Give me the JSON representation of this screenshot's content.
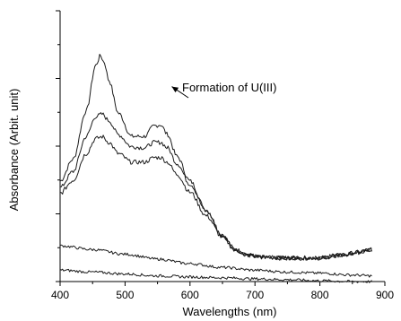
{
  "chart_data": {
    "type": "line",
    "title": "",
    "xlabel": "Wavelengths (nm)",
    "ylabel": "Absorbance (Arbit. unit)",
    "xlim": [
      400,
      900
    ],
    "ylim": [
      0,
      1
    ],
    "x_ticks": [
      400,
      500,
      600,
      700,
      800,
      900
    ],
    "y_ticks_labeled": false,
    "grid": false,
    "legend": "none",
    "line_color": "#1a1a1a",
    "annotation": {
      "text": "Formation of U(III)",
      "arrow_to": {
        "x": 572,
        "y": 0.72
      }
    },
    "series": [
      {
        "x": [
          400,
          420,
          440,
          455,
          462,
          468,
          475,
          490,
          510,
          530,
          545,
          555,
          565,
          580,
          600,
          625,
          650,
          670,
          690,
          710,
          740,
          770,
          800,
          830,
          860,
          880
        ],
        "values": [
          0.371,
          0.452,
          0.629,
          0.799,
          0.834,
          0.809,
          0.743,
          0.621,
          0.536,
          0.536,
          0.575,
          0.579,
          0.544,
          0.462,
          0.371,
          0.264,
          0.17,
          0.118,
          0.097,
          0.09,
          0.087,
          0.087,
          0.087,
          0.097,
          0.108,
          0.118
        ]
      },
      {
        "x": [
          400,
          420,
          440,
          455,
          465,
          475,
          490,
          510,
          530,
          545,
          555,
          565,
          580,
          600,
          625,
          650,
          670,
          690,
          710,
          740,
          770,
          800,
          830,
          860,
          880
        ],
        "values": [
          0.347,
          0.406,
          0.535,
          0.61,
          0.618,
          0.594,
          0.542,
          0.498,
          0.494,
          0.514,
          0.514,
          0.494,
          0.436,
          0.36,
          0.26,
          0.17,
          0.118,
          0.097,
          0.09,
          0.087,
          0.087,
          0.087,
          0.097,
          0.108,
          0.118
        ]
      },
      {
        "x": [
          400,
          420,
          440,
          455,
          465,
          475,
          490,
          510,
          530,
          545,
          555,
          565,
          580,
          600,
          625,
          650,
          670,
          690,
          710,
          740,
          770,
          800,
          830,
          860,
          880
        ],
        "values": [
          0.326,
          0.374,
          0.472,
          0.528,
          0.535,
          0.514,
          0.472,
          0.441,
          0.441,
          0.458,
          0.458,
          0.441,
          0.396,
          0.33,
          0.243,
          0.163,
          0.115,
          0.097,
          0.09,
          0.087,
          0.087,
          0.087,
          0.097,
          0.108,
          0.118
        ]
      },
      {
        "x": [
          400,
          450,
          500,
          550,
          600,
          650,
          700,
          750,
          800,
          850,
          880
        ],
        "values": [
          0.132,
          0.118,
          0.101,
          0.083,
          0.066,
          0.052,
          0.042,
          0.035,
          0.031,
          0.024,
          0.021
        ]
      },
      {
        "x": [
          400,
          450,
          500,
          550,
          600,
          650,
          700,
          750,
          800,
          850,
          880
        ],
        "values": [
          0.042,
          0.035,
          0.028,
          0.021,
          0.017,
          0.014,
          0.01,
          0.007,
          0.003,
          0.0,
          0.0
        ]
      }
    ]
  }
}
